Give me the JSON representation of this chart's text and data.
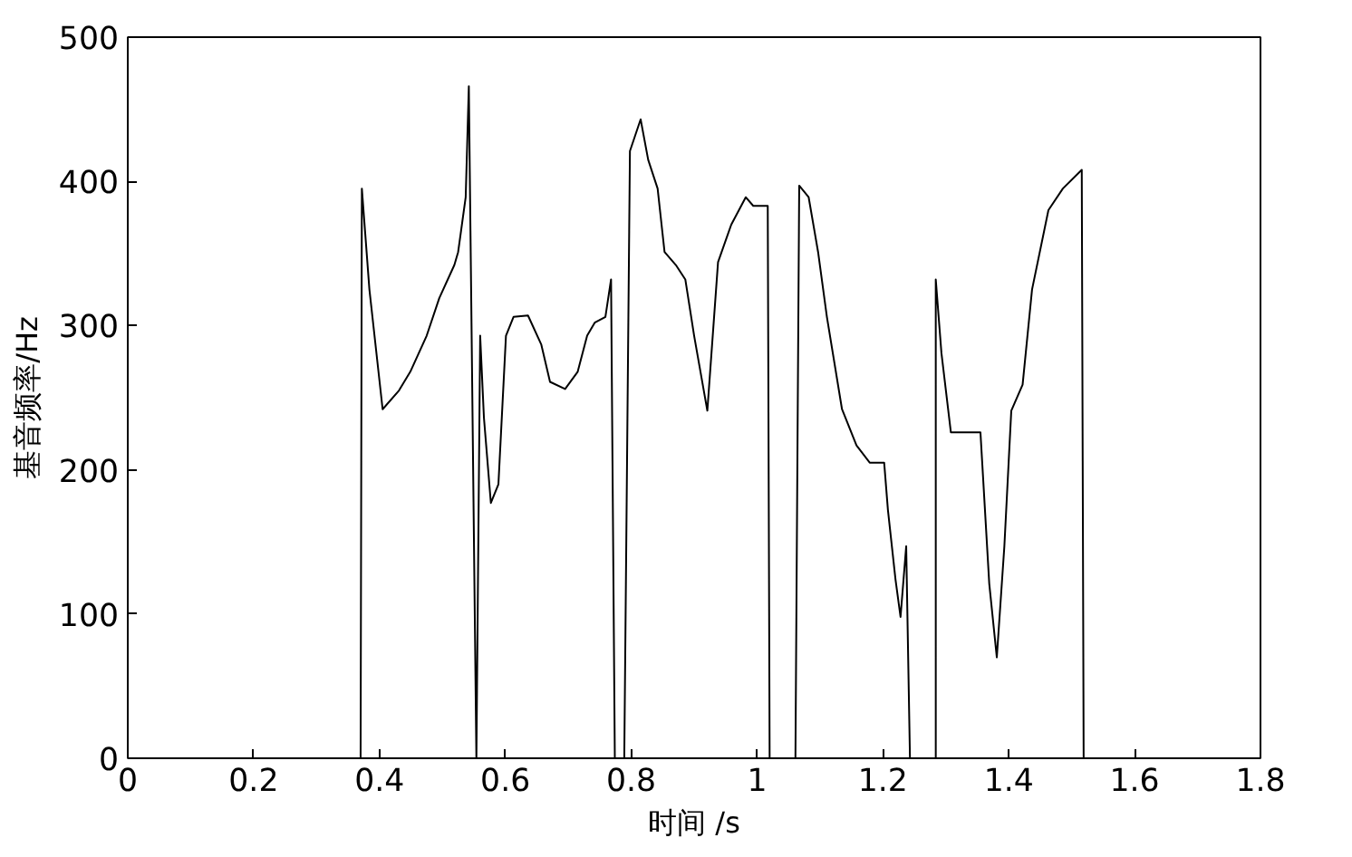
{
  "chart_data": {
    "type": "line",
    "xlabel": "时间 /s",
    "ylabel": "基音频率/Hz",
    "xlim": [
      0,
      1.8
    ],
    "ylim": [
      0,
      500
    ],
    "xticks": [
      0,
      0.2,
      0.4,
      0.6,
      0.8,
      1,
      1.2,
      1.4,
      1.6,
      1.8
    ],
    "yticks": [
      0,
      100,
      200,
      300,
      400,
      500
    ],
    "series": [
      {
        "color": "#000000",
        "x": [
          0,
          0.37,
          0.372,
          0.384,
          0.405,
          0.431,
          0.449,
          0.475,
          0.495,
          0.519,
          0.525,
          0.537,
          0.542,
          0.554,
          0.56,
          0.566,
          0.577,
          0.589,
          0.601,
          0.613,
          0.636,
          0.657,
          0.671,
          0.695,
          0.715,
          0.73,
          0.742,
          0.759,
          0.768,
          0.774,
          0.789,
          0.798,
          0.815,
          0.827,
          0.842,
          0.853,
          0.871,
          0.886,
          0.9,
          0.921,
          0.938,
          0.959,
          0.982,
          0.994,
          1.017,
          1.02,
          1.061,
          1.067,
          1.082,
          1.097,
          1.111,
          1.135,
          1.158,
          1.179,
          1.202,
          1.208,
          1.22,
          1.228,
          1.237,
          1.243,
          1.284,
          1.284,
          1.293,
          1.308,
          1.355,
          1.369,
          1.381,
          1.393,
          1.404,
          1.422,
          1.437,
          1.463,
          1.486,
          1.516,
          1.519,
          1.8
        ],
        "values": [
          0,
          0,
          395,
          325,
          242,
          255,
          268,
          293,
          319,
          342,
          351,
          389,
          466,
          0,
          293,
          236,
          177,
          190,
          293,
          306,
          307,
          287,
          261,
          256,
          268,
          293,
          302,
          306,
          332,
          0,
          0,
          421,
          443,
          415,
          395,
          351,
          342,
          332,
          293,
          241,
          344,
          370,
          389,
          383,
          383,
          0,
          0,
          397,
          389,
          351,
          306,
          242,
          217,
          205,
          205,
          172,
          124,
          98,
          147,
          0,
          0,
          332,
          281,
          226,
          226,
          121,
          70,
          147,
          241,
          259,
          325,
          380,
          395,
          408,
          0,
          0
        ]
      }
    ]
  }
}
